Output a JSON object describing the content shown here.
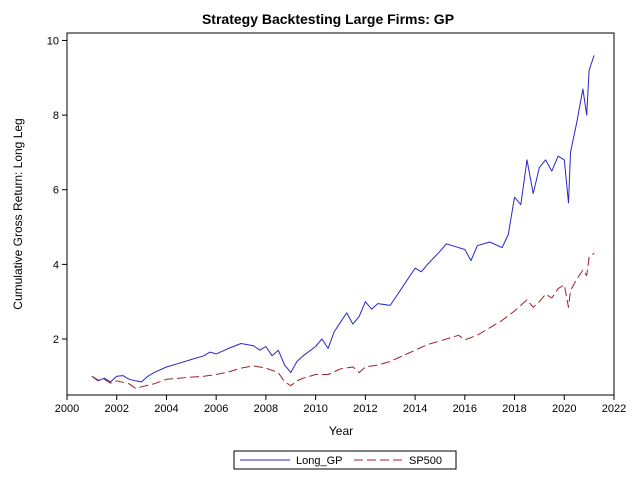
{
  "chart_data": {
    "type": "line",
    "title": "Strategy Backtesting Large Firms: GP",
    "xlabel": "Year",
    "ylabel": "Cumulative Gross Return: Long Leg",
    "xlim": [
      2000,
      2022
    ],
    "ylim": [
      0.5,
      10.2
    ],
    "x_ticks": [
      "2000",
      "2002",
      "2004",
      "2006",
      "2008",
      "2010",
      "2012",
      "2014",
      "2016",
      "2018",
      "2020",
      "2022"
    ],
    "y_ticks": [
      "2",
      "4",
      "6",
      "8",
      "10"
    ],
    "grid": false,
    "legend_position": "bottom-center",
    "colors": {
      "Long_GP": "#2828c8",
      "SP500": "#a0202a"
    },
    "series": [
      {
        "name": "Long_GP",
        "style": "solid",
        "x": [
          2001.0,
          2001.25,
          2001.5,
          2001.75,
          2002.0,
          2002.25,
          2002.5,
          2002.75,
          2003.0,
          2003.25,
          2003.5,
          2004.0,
          2004.5,
          2005.0,
          2005.5,
          2005.75,
          2006.0,
          2006.5,
          2007.0,
          2007.5,
          2007.75,
          2008.0,
          2008.25,
          2008.5,
          2008.75,
          2009.0,
          2009.25,
          2009.5,
          2010.0,
          2010.25,
          2010.5,
          2010.75,
          2011.0,
          2011.25,
          2011.5,
          2011.75,
          2012.0,
          2012.25,
          2012.5,
          2013.0,
          2013.5,
          2014.0,
          2014.25,
          2014.5,
          2015.0,
          2015.25,
          2015.5,
          2016.0,
          2016.25,
          2016.5,
          2017.0,
          2017.5,
          2017.75,
          2018.0,
          2018.25,
          2018.5,
          2018.75,
          2019.0,
          2019.25,
          2019.5,
          2019.75,
          2020.0,
          2020.17,
          2020.25,
          2020.5,
          2020.75,
          2020.9,
          2021.0,
          2021.2
        ],
        "values": [
          1.0,
          0.88,
          0.95,
          0.85,
          1.0,
          1.02,
          0.92,
          0.88,
          0.85,
          1.0,
          1.1,
          1.25,
          1.35,
          1.45,
          1.55,
          1.65,
          1.6,
          1.75,
          1.88,
          1.82,
          1.7,
          1.8,
          1.55,
          1.7,
          1.3,
          1.1,
          1.4,
          1.55,
          1.8,
          2.0,
          1.75,
          2.2,
          2.45,
          2.7,
          2.4,
          2.6,
          3.0,
          2.8,
          2.95,
          2.9,
          3.4,
          3.9,
          3.8,
          4.0,
          4.35,
          4.55,
          4.5,
          4.4,
          4.1,
          4.5,
          4.6,
          4.45,
          4.8,
          5.8,
          5.6,
          6.8,
          5.9,
          6.6,
          6.8,
          6.5,
          6.9,
          6.8,
          5.65,
          7.0,
          7.8,
          8.7,
          8.0,
          9.2,
          9.6
        ]
      },
      {
        "name": "SP500",
        "style": "dashed",
        "x": [
          2001.0,
          2001.25,
          2001.5,
          2001.75,
          2002.0,
          2002.5,
          2002.75,
          2003.0,
          2003.5,
          2004.0,
          2004.5,
          2005.0,
          2005.5,
          2006.0,
          2006.5,
          2007.0,
          2007.5,
          2007.75,
          2008.0,
          2008.5,
          2008.75,
          2009.0,
          2009.25,
          2009.5,
          2010.0,
          2010.5,
          2011.0,
          2011.5,
          2011.75,
          2012.0,
          2012.5,
          2013.0,
          2013.5,
          2014.0,
          2014.5,
          2015.0,
          2015.5,
          2015.75,
          2016.0,
          2016.5,
          2017.0,
          2017.5,
          2018.0,
          2018.5,
          2018.75,
          2019.0,
          2019.25,
          2019.5,
          2019.75,
          2020.0,
          2020.17,
          2020.25,
          2020.5,
          2020.75,
          2020.9,
          2021.0,
          2021.2
        ],
        "values": [
          1.0,
          0.9,
          0.92,
          0.82,
          0.88,
          0.8,
          0.68,
          0.72,
          0.8,
          0.92,
          0.95,
          0.98,
          1.0,
          1.05,
          1.12,
          1.22,
          1.28,
          1.25,
          1.22,
          1.1,
          0.85,
          0.75,
          0.88,
          0.95,
          1.05,
          1.05,
          1.2,
          1.25,
          1.1,
          1.25,
          1.3,
          1.4,
          1.55,
          1.7,
          1.85,
          1.95,
          2.05,
          2.1,
          1.98,
          2.1,
          2.3,
          2.5,
          2.75,
          3.05,
          2.85,
          3.0,
          3.2,
          3.1,
          3.35,
          3.45,
          2.85,
          3.3,
          3.6,
          3.85,
          3.7,
          4.2,
          4.3
        ]
      }
    ]
  }
}
